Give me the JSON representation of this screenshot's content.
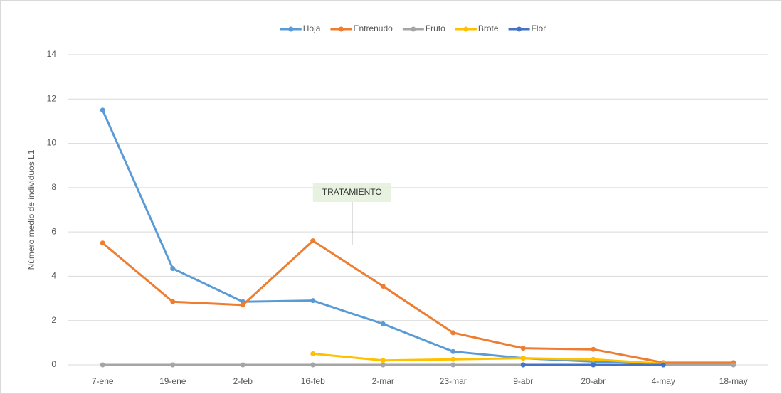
{
  "chart_data": {
    "type": "line",
    "y_label": "Número medio de individuos L1",
    "annotation": "TRATAMIENTO",
    "categories": [
      "7-ene",
      "19-ene",
      "2-feb",
      "16-feb",
      "2-mar",
      "23-mar",
      "9-abr",
      "20-abr",
      "4-may",
      "18-may"
    ],
    "series": [
      {
        "name": "Hoja",
        "color": "#5b9bd5",
        "values": [
          11.5,
          4.35,
          2.85,
          2.9,
          1.85,
          0.6,
          0.3,
          0.15,
          0.05,
          0.05
        ]
      },
      {
        "name": "Entrenudo",
        "color": "#ed7d31",
        "values": [
          5.5,
          2.85,
          2.7,
          5.6,
          3.55,
          1.45,
          0.75,
          0.7,
          0.1,
          0.1
        ]
      },
      {
        "name": "Fruto",
        "color": "#a5a5a5",
        "values": [
          0,
          0,
          0,
          0,
          0,
          0,
          0,
          0,
          0,
          0
        ]
      },
      {
        "name": "Brote",
        "color": "#ffc000",
        "values": [
          null,
          null,
          null,
          0.5,
          0.2,
          0.25,
          0.3,
          0.25,
          0.05,
          null
        ]
      },
      {
        "name": "Flor",
        "color": "#4472c4",
        "values": [
          null,
          null,
          null,
          null,
          null,
          null,
          0,
          0,
          0,
          null
        ]
      }
    ],
    "ylim": [
      0,
      14
    ],
    "yticks": [
      0,
      2,
      4,
      6,
      8,
      10,
      12,
      14
    ],
    "grid": true,
    "legend": "top"
  }
}
